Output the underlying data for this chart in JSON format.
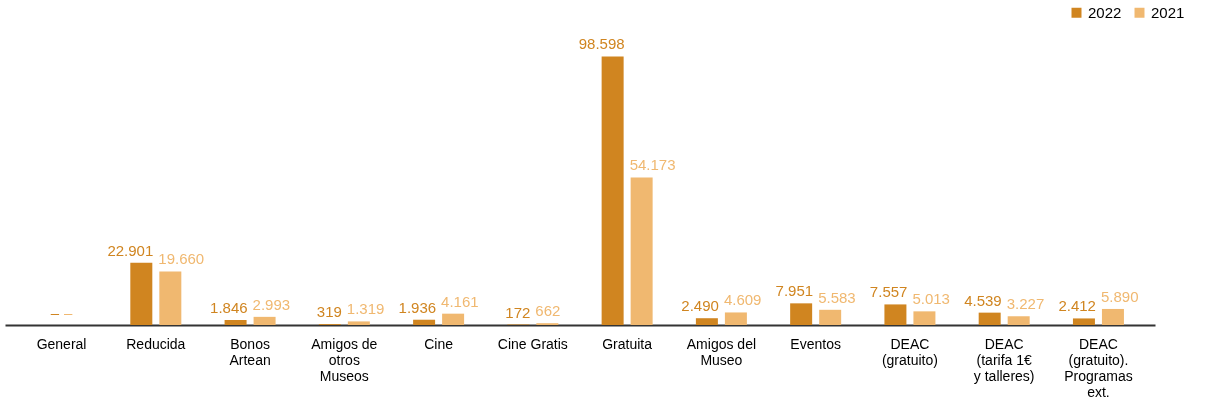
{
  "chart_data": {
    "type": "bar",
    "categories": [
      "General",
      "Reducida",
      "Bonos Artean",
      "Amigos de otros Museos",
      "Cine",
      "Cine Gratis",
      "Gratuita",
      "Amigos del Museo",
      "Eventos",
      "DEAC (gratuito)",
      "DEAC (tarifa 1€ y talleres)",
      "DEAC (gratuito). Programas ext."
    ],
    "series": [
      {
        "name": "2022",
        "color": "#d08520",
        "values": [
          null,
          22901,
          1846,
          319,
          1936,
          172,
          98598,
          2490,
          7951,
          7557,
          4539,
          2412
        ],
        "value_labels": [
          "–",
          "22.901",
          "1.846",
          "319",
          "1.936",
          "172",
          "98.598",
          "2.490",
          "7.951",
          "7.557",
          "4.539",
          "2.412"
        ]
      },
      {
        "name": "2021",
        "color": "#f0b870",
        "values": [
          null,
          19660,
          2993,
          1319,
          4161,
          662,
          54173,
          4609,
          5583,
          5013,
          3227,
          5890
        ],
        "value_labels": [
          "–",
          "19.660",
          "2.993",
          "1.319",
          "4.161",
          "662",
          "54.173",
          "4.609",
          "5.583",
          "5.013",
          "3.227",
          "5.890"
        ]
      }
    ],
    "legend": "top right",
    "grid": false
  }
}
